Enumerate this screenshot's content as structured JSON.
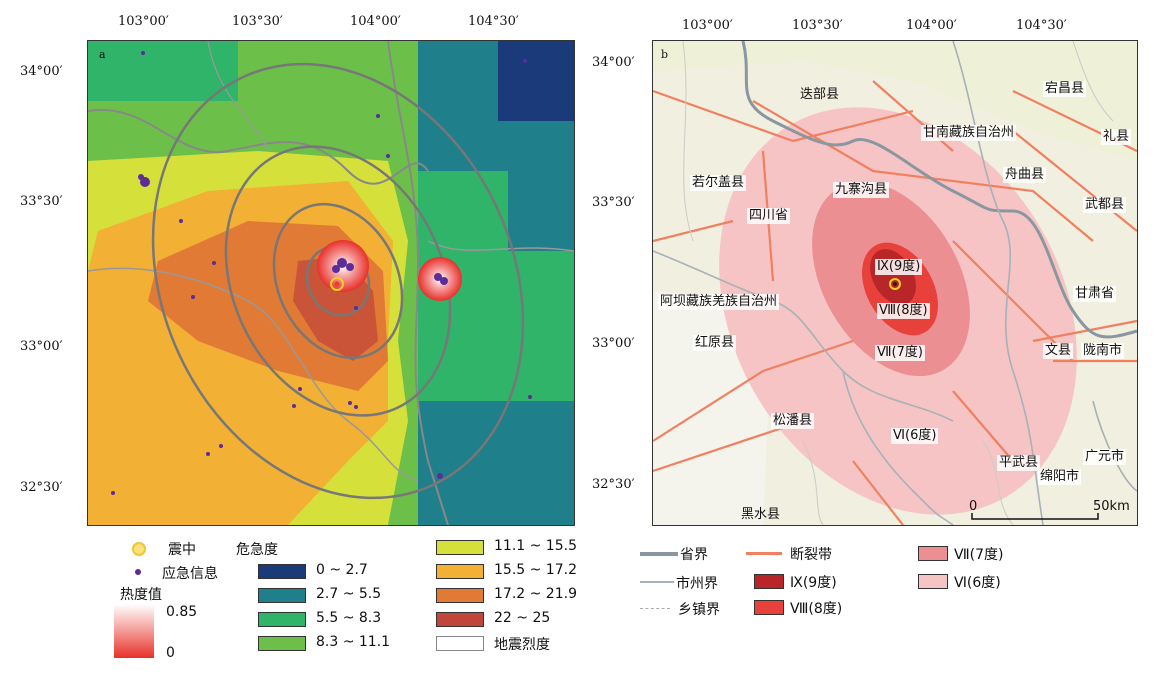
{
  "panel_a": {
    "letter": "a",
    "lon_ticks": [
      "103°00′",
      "103°30′",
      "104°00′",
      "104°30′"
    ],
    "lat_ticks": [
      "34°00′",
      "33°30′",
      "33°00′",
      "32°30′"
    ]
  },
  "panel_b": {
    "letter": "b",
    "lon_ticks": [
      "103°00′",
      "103°30′",
      "104°00′",
      "104°30′"
    ],
    "lat_ticks": [
      "34°00′",
      "33°30′",
      "33°00′",
      "32°30′"
    ],
    "places": {
      "diebu": "迭部县",
      "dangchang": "宕昌县",
      "gannan": "甘南藏族自治州",
      "lixian": "礼县",
      "zhouqu": "舟曲县",
      "ruoergai": "若尔盖县",
      "jiuzhaigou": "九寨沟县",
      "wudu": "武都县",
      "sichuan": "四川省",
      "gansu": "甘肃省",
      "aba": "阿坝藏族羌族自治州",
      "hongyuan": "红原县",
      "wenxian": "文县",
      "longnan": "陇南市",
      "songpan": "松潘县",
      "pingwu": "平武县",
      "guangyuan": "广元市",
      "mianyang": "绵阳市",
      "heishui": "黑水县"
    },
    "intensity_labels": {
      "ix": "Ⅸ(9度)",
      "viii": "Ⅷ(8度)",
      "vii": "Ⅶ(7度)",
      "vi": "Ⅵ(6度)"
    },
    "scale_0": "0",
    "scale_50": "50km"
  },
  "legend_a": {
    "epicenter": "震中",
    "emergency_info": "应急信息",
    "heat_title": "热度值",
    "heat_max": "0.85",
    "heat_min": "0",
    "danger_title": "危急度",
    "classes": [
      {
        "label": "0 ~ 2.7",
        "color": "#1a3a7a"
      },
      {
        "label": "2.7 ~ 5.5",
        "color": "#1f7f8a"
      },
      {
        "label": "5.5 ~ 8.3",
        "color": "#2fb46a"
      },
      {
        "label": "8.3 ~ 11.1",
        "color": "#6cc04a"
      },
      {
        "label": "11.1 ~ 15.5",
        "color": "#d6e03a"
      },
      {
        "label": "15.5 ~ 17.2",
        "color": "#f2b035"
      },
      {
        "label": "17.2 ~ 21.9",
        "color": "#e07a35"
      },
      {
        "label": "22 ~ 25",
        "color": "#c0453a"
      }
    ],
    "intensity": "地震烈度"
  },
  "legend_b": {
    "province": "省界",
    "city": "市州界",
    "town": "乡镇界",
    "fault": "断裂带",
    "ix": "Ⅸ(9度)",
    "viii": "Ⅷ(8度)",
    "vii": "Ⅶ(7度)",
    "vi": "Ⅵ(6度)",
    "colors": {
      "ix": "#b8262a",
      "viii": "#e8403a",
      "vii": "#ec8f93",
      "vi": "#f6c4c4"
    }
  }
}
